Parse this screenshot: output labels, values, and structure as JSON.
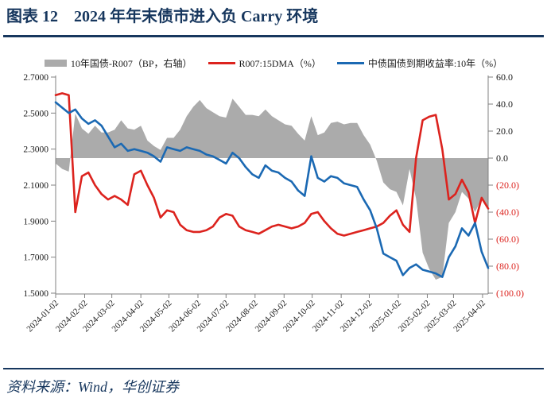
{
  "header": {
    "label": "图表 12",
    "title": "2024 年年末债市进入负 Carry 环境"
  },
  "legend": {
    "items": [
      {
        "name": "spread",
        "label": "10年国债-R007（BP，右轴）",
        "color": "#ABABAB",
        "style": "area"
      },
      {
        "name": "r007",
        "label": "R007:15DMA（%）",
        "color": "#DC231E",
        "style": "line"
      },
      {
        "name": "cgb10y",
        "label": "中债国债到期收益率:10年（%）",
        "color": "#1B69B3",
        "style": "line"
      }
    ]
  },
  "source": {
    "text": "资料来源：Wind，华创证券"
  },
  "colors": {
    "accent_navy": "#17375E",
    "axis_line": "#808080",
    "axis_text": "#1a1a1a",
    "negative_tick_text": "#DC231E",
    "spread_fill": "#ABABAB",
    "r007_line": "#DC231E",
    "cgb10y_line": "#1B69B3"
  },
  "chart_data": {
    "type": "line+area",
    "title": "2024 年年末债市进入负 Carry 环境",
    "grid": "off",
    "legend_position": "top",
    "x_start_date": "2024-01-02",
    "x_step_days": 7,
    "x_total_days": 462,
    "x_tick_labels": [
      "2024-01-02",
      "2024-02-02",
      "2024-03-02",
      "2024-04-02",
      "2024-05-02",
      "2024-06-02",
      "2024-07-02",
      "2024-08-02",
      "2024-09-02",
      "2024-10-02",
      "2024-11-02",
      "2024-12-02",
      "2025-01-02",
      "2025-02-02",
      "2025-03-02",
      "2025-04-02"
    ],
    "x_tick_days": [
      0,
      31,
      60,
      91,
      121,
      152,
      182,
      213,
      244,
      274,
      305,
      335,
      366,
      397,
      425,
      456
    ],
    "left_axis": {
      "min": 1.5,
      "max": 2.7,
      "tick_labels": [
        "2.7000",
        "2.5000",
        "2.3000",
        "2.1000",
        "1.9000",
        "1.7000",
        "1.5000"
      ],
      "tick_values": [
        2.7,
        2.5,
        2.3,
        2.1,
        1.9,
        1.7,
        1.5
      ]
    },
    "right_axis": {
      "min": -100,
      "max": 60,
      "tick_labels": [
        "60.0",
        "40.0",
        "20.0",
        "0.0",
        "(20.0)",
        "(40.0)",
        "(60.0)",
        "(80.0)",
        "(100.0)"
      ],
      "tick_values": [
        60,
        40,
        20,
        0,
        -20,
        -40,
        -60,
        -80,
        -100
      ]
    },
    "series": [
      {
        "name": "10年国债-R007",
        "unit": "BP",
        "axis": "right",
        "style": "area",
        "color": "#ABABAB",
        "values": [
          -4,
          -8,
          -10,
          33,
          22,
          18,
          24,
          19,
          19,
          21,
          28,
          22,
          21,
          24,
          13,
          9,
          6,
          15,
          15,
          21,
          31,
          38,
          43,
          37,
          34,
          31,
          30,
          44,
          38,
          32,
          32,
          31,
          36,
          31,
          28,
          25,
          24,
          18,
          13,
          31,
          17,
          19,
          26,
          27,
          25,
          26,
          26,
          17,
          10,
          -2,
          -18,
          -23,
          -25,
          -35,
          -8,
          -30,
          -70,
          -82,
          -90,
          -88,
          -48,
          -40,
          -25,
          -30,
          -40,
          -30,
          -38
        ]
      },
      {
        "name": "R007:15DMA",
        "unit": "%",
        "axis": "left",
        "style": "line",
        "color": "#DC231E",
        "values": [
          2.6,
          2.61,
          2.6,
          1.95,
          2.15,
          2.17,
          2.1,
          2.05,
          2.02,
          2.04,
          2.02,
          1.99,
          2.16,
          2.18,
          2.1,
          2.03,
          1.92,
          1.96,
          1.95,
          1.88,
          1.85,
          1.84,
          1.84,
          1.85,
          1.87,
          1.92,
          1.94,
          1.93,
          1.87,
          1.85,
          1.84,
          1.83,
          1.85,
          1.87,
          1.88,
          1.87,
          1.86,
          1.87,
          1.89,
          1.94,
          1.95,
          1.9,
          1.86,
          1.83,
          1.82,
          1.83,
          1.84,
          1.85,
          1.86,
          1.87,
          1.89,
          1.93,
          1.96,
          1.88,
          1.84,
          2.25,
          2.46,
          2.48,
          2.49,
          2.3,
          2.02,
          2.05,
          2.13,
          2.06,
          1.89,
          2.03,
          1.97
        ]
      },
      {
        "name": "中债国债到期收益率:10年",
        "unit": "%",
        "axis": "left",
        "style": "line",
        "color": "#1B69B3",
        "values": [
          2.56,
          2.53,
          2.5,
          2.52,
          2.47,
          2.44,
          2.46,
          2.43,
          2.37,
          2.31,
          2.33,
          2.29,
          2.3,
          2.29,
          2.28,
          2.26,
          2.23,
          2.31,
          2.3,
          2.29,
          2.31,
          2.3,
          2.29,
          2.27,
          2.26,
          2.24,
          2.22,
          2.28,
          2.25,
          2.2,
          2.16,
          2.14,
          2.21,
          2.18,
          2.17,
          2.14,
          2.12,
          2.07,
          2.04,
          2.26,
          2.14,
          2.12,
          2.15,
          2.14,
          2.11,
          2.1,
          2.09,
          2.02,
          1.96,
          1.86,
          1.72,
          1.7,
          1.68,
          1.6,
          1.64,
          1.66,
          1.63,
          1.62,
          1.61,
          1.59,
          1.7,
          1.76,
          1.86,
          1.82,
          1.89,
          1.73,
          1.64
        ]
      }
    ]
  }
}
